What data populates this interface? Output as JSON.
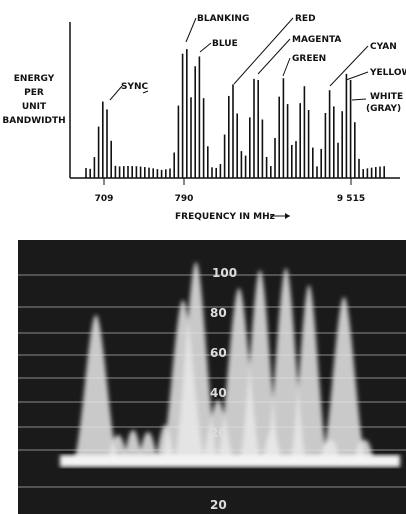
{
  "diagram": {
    "y_label": [
      "ENERGY",
      "PER",
      "UNIT",
      "BANDWIDTH"
    ],
    "x_label": "FREQUENCY IN MHz",
    "x_ticks": [
      "709",
      "790",
      "9 515"
    ],
    "annotations": [
      "SYNC",
      "BLANKING",
      "BLUE",
      "RED",
      "MAGENTA",
      "GREEN",
      "CYAN",
      "YELLOW",
      "WHITE",
      "(GRAY)"
    ],
    "photo_scale": [
      "100",
      "80",
      "60",
      "40",
      "20",
      "20"
    ]
  }
}
